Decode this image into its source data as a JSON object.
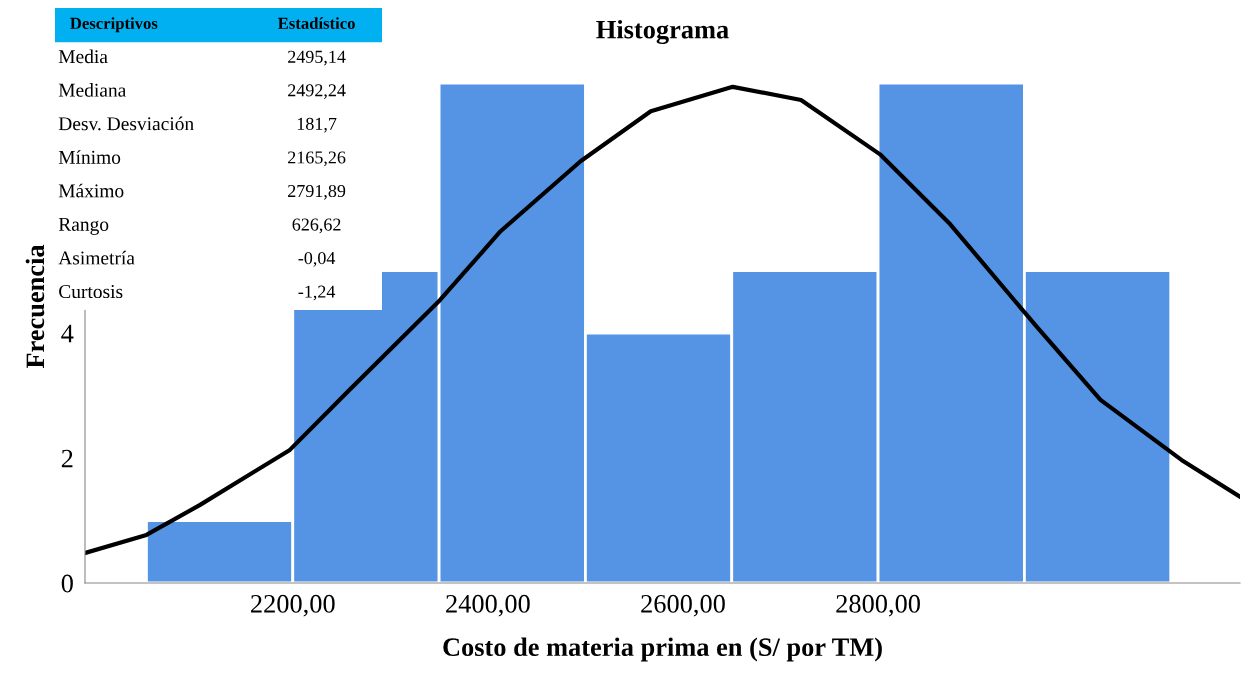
{
  "chart_data": [
    {
      "type": "histogram",
      "title": "Histograma",
      "xlabel": "Costo de materia prima en (S/ por TM)",
      "ylabel": "Frecuencia",
      "bins": [
        2050,
        2200,
        2350,
        2500,
        2650,
        2800,
        2950,
        3100
      ],
      "values": [
        1,
        5,
        8,
        4,
        5,
        8,
        5
      ],
      "color": "#5593e5",
      "series": [
        {
          "type": "line",
          "color": "#000000",
          "x": [
            1987,
            2050,
            2105,
            2197,
            2258,
            2351,
            2413,
            2495,
            2567,
            2651,
            2721,
            2802,
            2874,
            2961,
            3028,
            3111,
            3171
          ],
          "values": [
            0.48,
            0.77,
            1.25,
            2.13,
            3.09,
            4.53,
            5.63,
            6.75,
            7.55,
            7.94,
            7.73,
            6.86,
            5.74,
            4.13,
            2.93,
            1.97,
            1.38
          ]
        }
      ],
      "xlim": [
        1987,
        3171
      ],
      "ylim": [
        0,
        8.85
      ],
      "xticks": [
        {
          "value": 2200,
          "label": "2200,00"
        },
        {
          "value": 2400,
          "label": "2400,00"
        },
        {
          "value": 2600,
          "label": "2600,00"
        },
        {
          "value": 2800,
          "label": "2800,00"
        }
      ],
      "yticks": [
        0,
        2,
        4
      ],
      "grid": false,
      "legend": false
    },
    {
      "type": "other",
      "annotations": [
        "Descriptivos",
        "Estadístico"
      ],
      "categories": [
        "Media",
        "Mediana",
        "Desv. Desviación",
        "Mínimo",
        "Máximo",
        "Rango",
        "Asimetría",
        "Curtosis"
      ],
      "value_labels": [
        "2495,14",
        "2492,24",
        "181,7",
        "2165,26",
        "2791,89",
        "626,62",
        "-0,04",
        "-1,24"
      ],
      "color": "#00b0f0"
    }
  ]
}
